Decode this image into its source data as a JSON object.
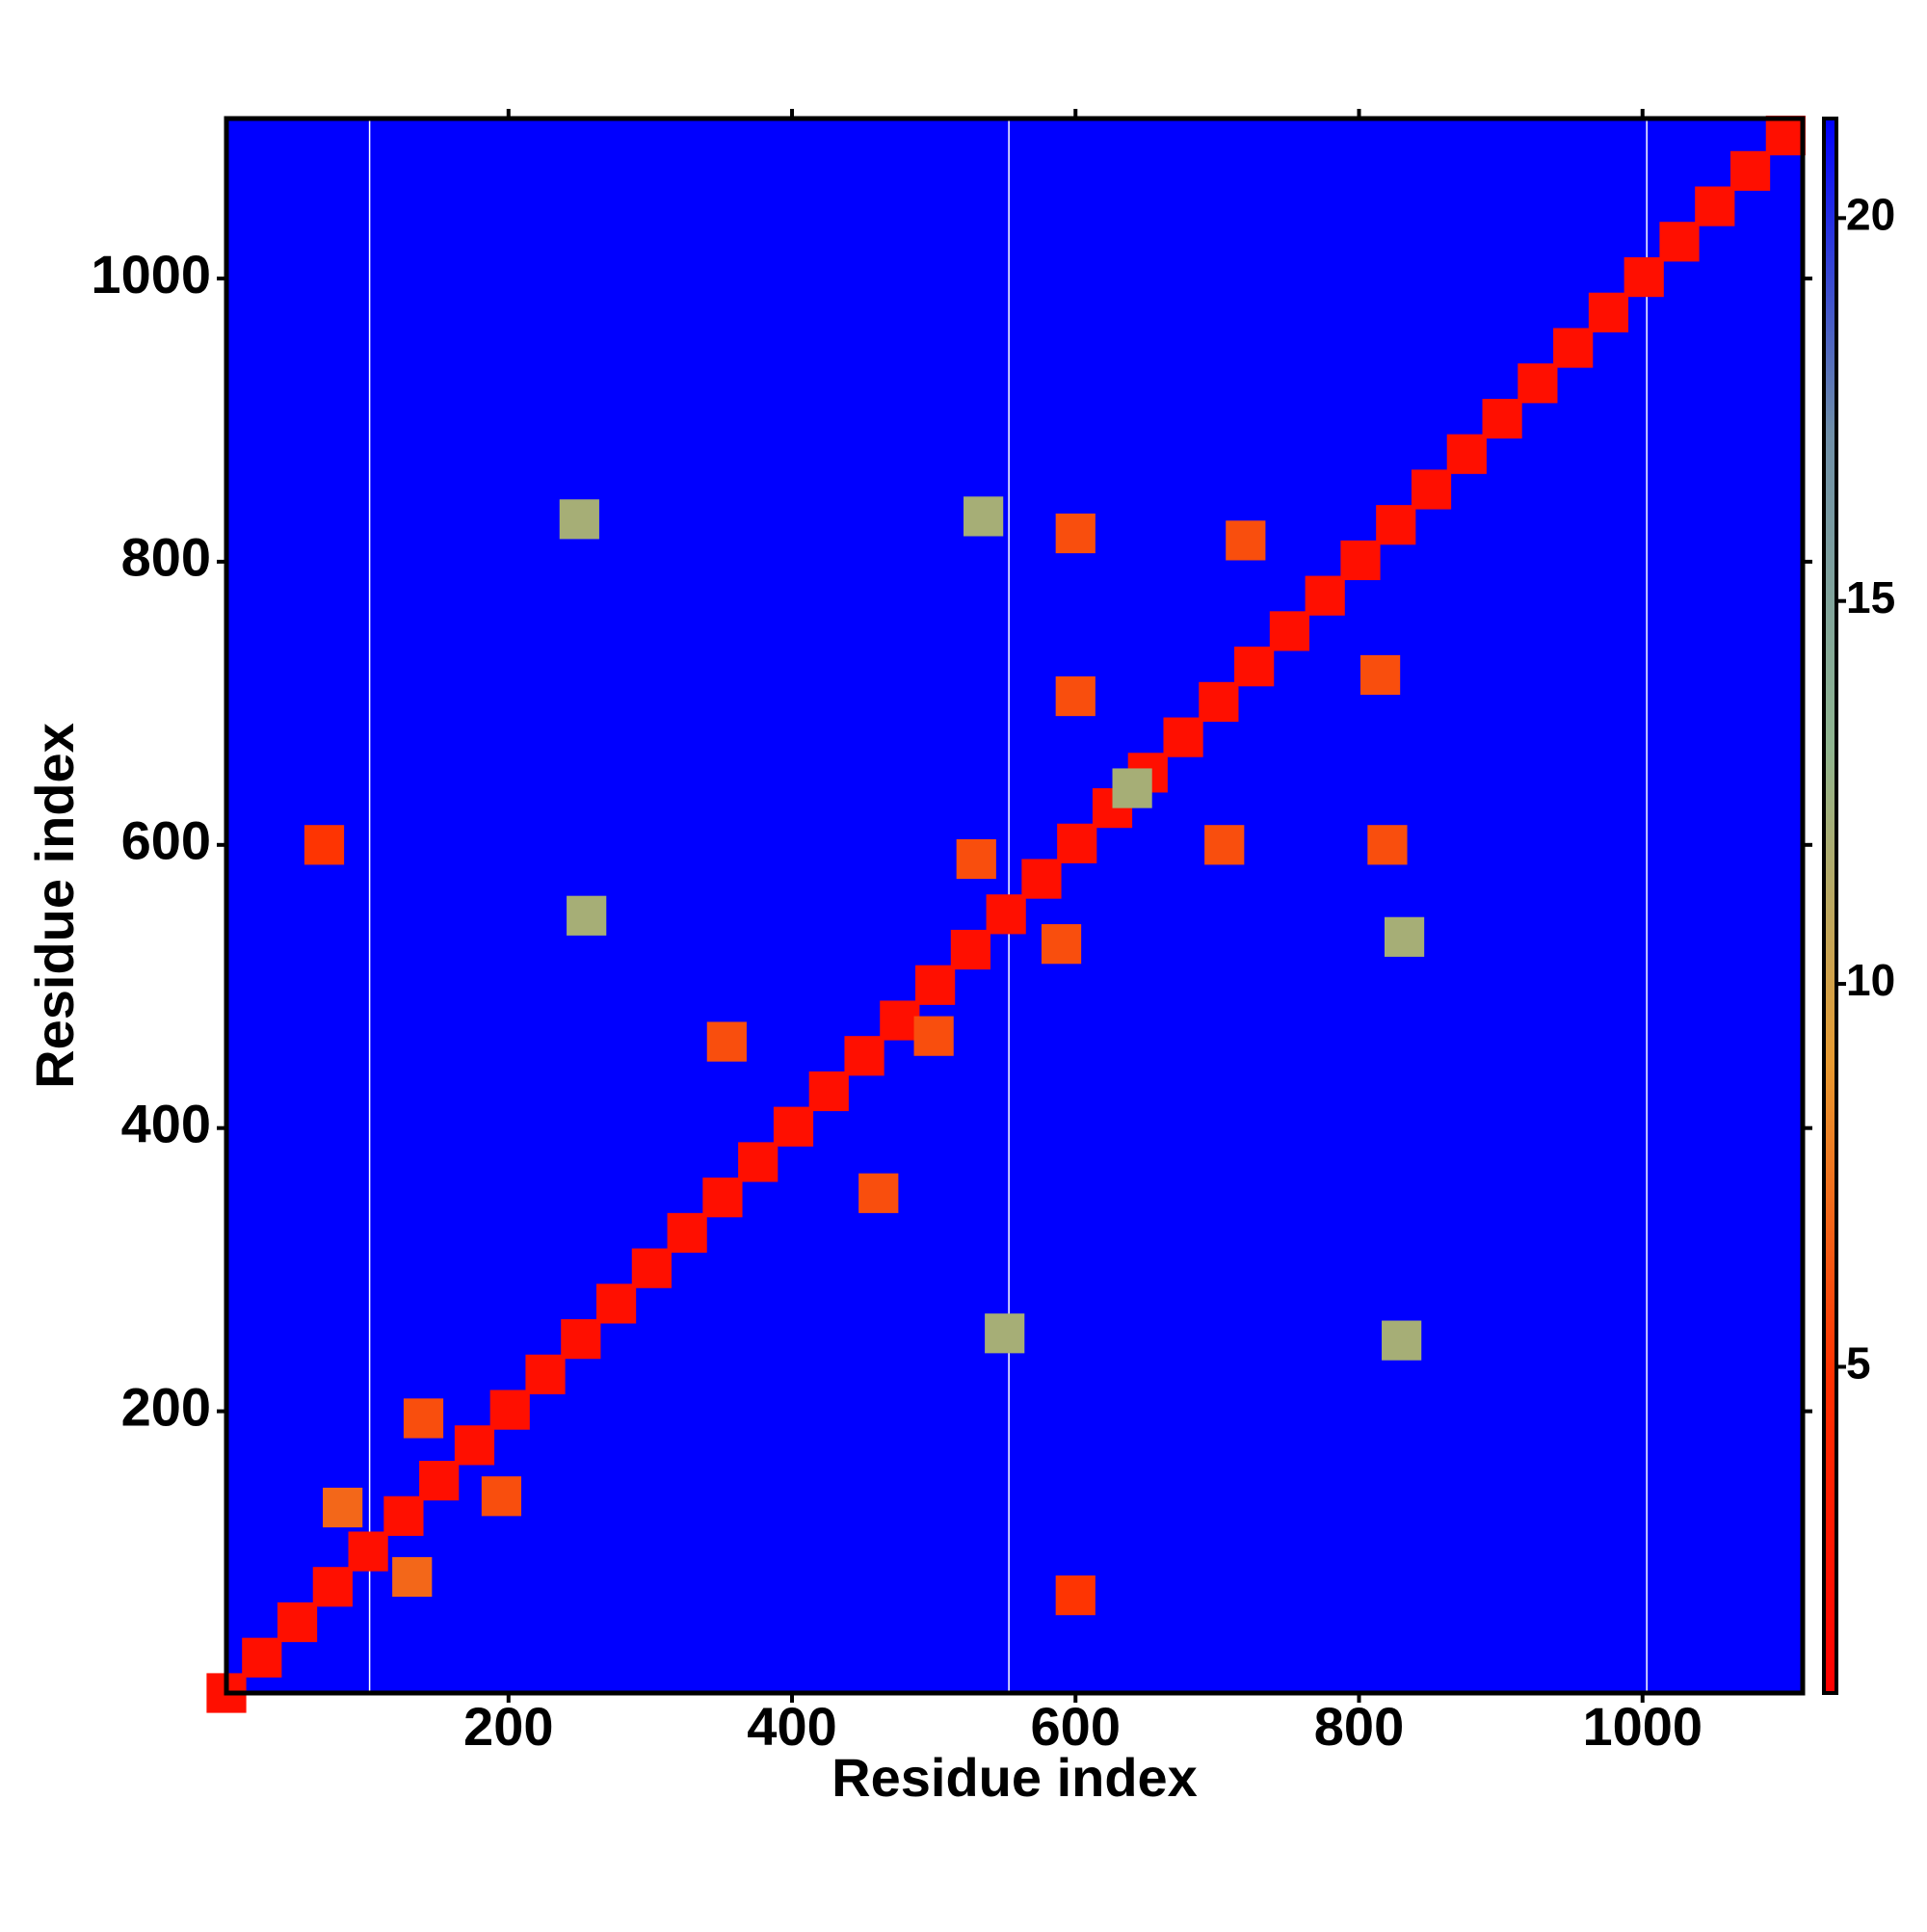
{
  "chart_data": {
    "type": "heatmap",
    "xlabel": "Residue index",
    "ylabel": "Residue index",
    "xlim": [
      1,
      1113
    ],
    "ylim": [
      1,
      1113
    ],
    "xticks": [
      200,
      400,
      600,
      800,
      1000
    ],
    "yticks": [
      200,
      400,
      600,
      800,
      1000
    ],
    "background_color": "#0000ff",
    "colormap": [
      "#ff0000",
      "#ff3000",
      "#e89a30",
      "#8fb58f",
      "#6f8fa8",
      "#0000ff"
    ],
    "clim": [
      0.74,
      21.3
    ],
    "cticks": [
      5,
      10,
      15,
      20
    ],
    "gap_x": [
      102,
      553,
      1003
    ],
    "x": [
      1,
      26,
      51,
      76,
      101,
      126,
      151,
      176,
      201,
      226,
      251,
      276,
      301,
      326,
      351,
      376,
      401,
      426,
      451,
      476,
      501,
      526,
      551,
      576,
      601,
      626,
      651,
      676,
      701,
      726,
      751,
      776,
      801,
      826,
      851,
      876,
      901,
      926,
      951,
      976,
      1001,
      1026,
      1051,
      1076,
      1101,
      140,
      195,
      132,
      83,
      354,
      461,
      530,
      590,
      600,
      705,
      600,
      820,
      720,
      815,
      500,
      600,
      70,
      250,
      830,
      255,
      550,
      640,
      832,
      535
    ],
    "y": [
      1,
      26,
      51,
      76,
      101,
      126,
      151,
      176,
      201,
      226,
      251,
      276,
      301,
      326,
      351,
      376,
      401,
      426,
      451,
      476,
      501,
      526,
      551,
      576,
      601,
      626,
      651,
      676,
      701,
      726,
      751,
      776,
      801,
      826,
      851,
      876,
      901,
      926,
      951,
      976,
      1001,
      1026,
      1051,
      1076,
      1101,
      195,
      140,
      83,
      132,
      461,
      354,
      590,
      530,
      705,
      600,
      820,
      600,
      815,
      720,
      465,
      70,
      600,
      830,
      250,
      550,
      255,
      640,
      535,
      832
    ],
    "values": [
      2,
      2,
      2,
      2,
      2,
      2,
      2,
      2,
      2,
      2,
      2,
      2,
      2,
      2,
      2,
      2,
      2,
      2,
      2,
      2,
      2,
      2,
      2,
      2,
      2,
      2,
      2,
      2,
      2,
      2,
      2,
      2,
      2,
      2,
      2,
      2,
      2,
      2,
      2,
      2,
      2,
      2,
      2,
      2,
      2,
      6,
      6,
      7,
      7,
      6,
      6,
      6,
      6,
      6,
      6,
      6,
      6,
      6,
      6,
      6,
      5,
      5,
      12,
      12,
      12,
      12,
      12,
      12,
      12
    ]
  }
}
